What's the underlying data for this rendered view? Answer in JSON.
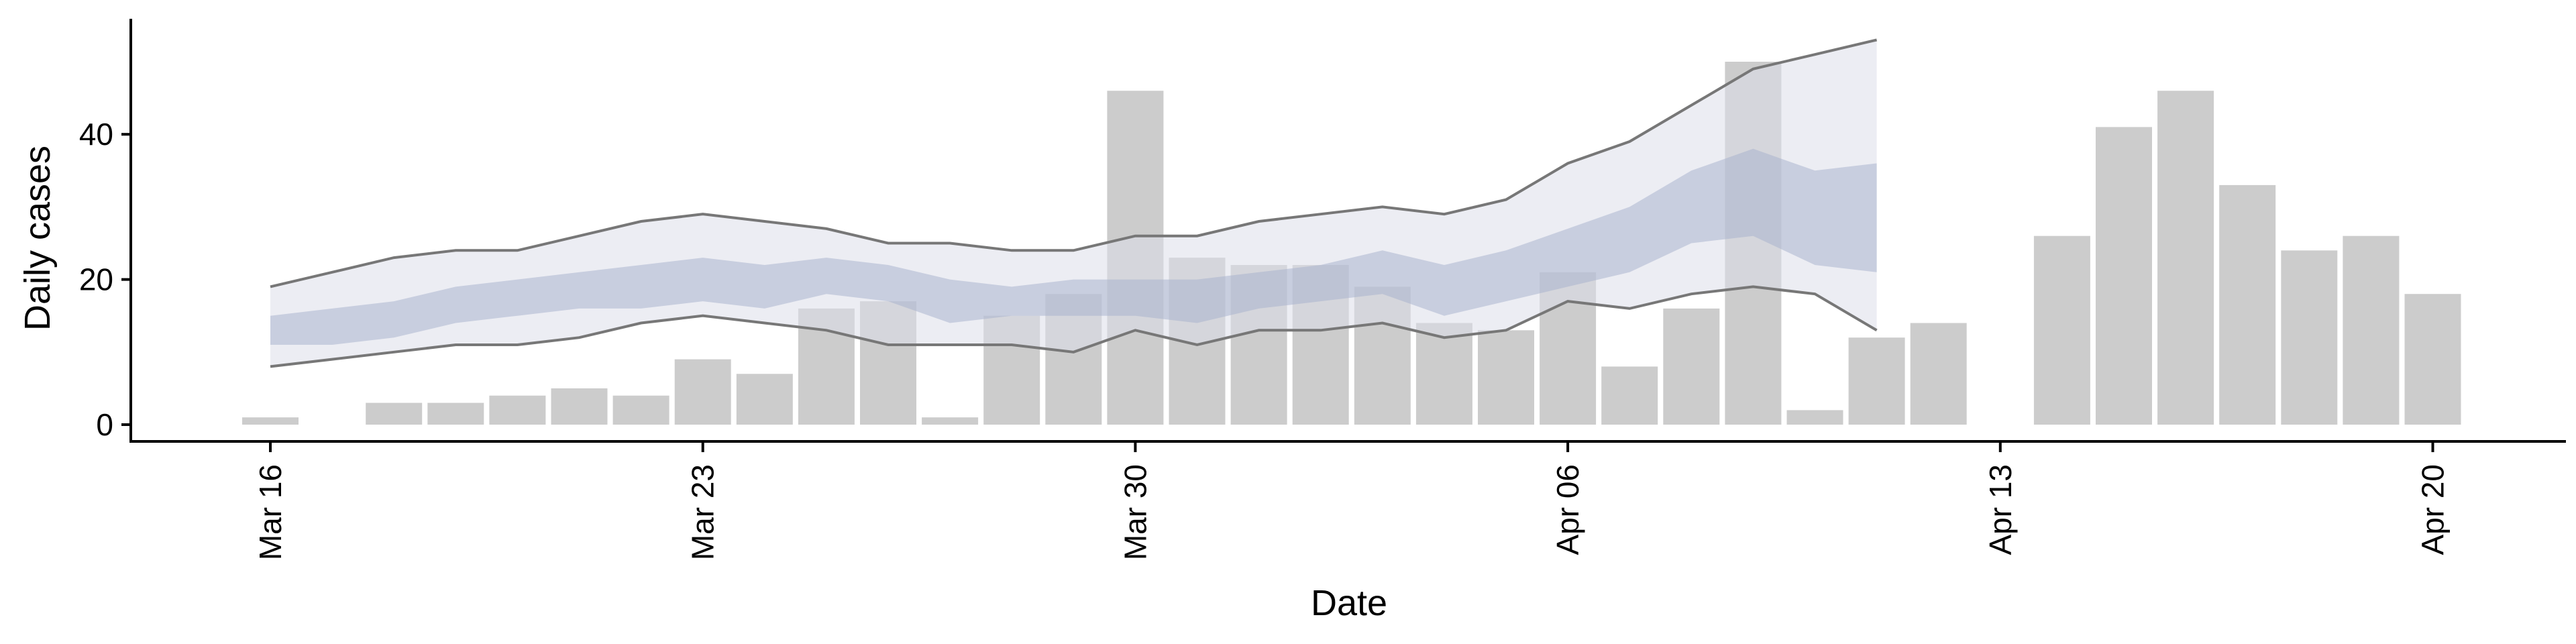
{
  "chart_data": {
    "type": "bar",
    "xlabel": "Date",
    "ylabel": "Daily cases",
    "ylim": [
      -2.5,
      56
    ],
    "yticks": [
      0,
      20,
      40
    ],
    "x_start": "2020-03-16",
    "x_end": "2020-04-20",
    "xtick_labels": [
      "Mar 16",
      "Mar 23",
      "Mar 30",
      "Apr 06",
      "Apr 13",
      "Apr 20"
    ],
    "xtick_dates": [
      "2020-03-16",
      "2020-03-23",
      "2020-03-30",
      "2020-04-06",
      "2020-04-13",
      "2020-04-20"
    ],
    "grid": false,
    "legend": "none",
    "bars": {
      "dates": [
        "2020-03-16",
        "2020-03-18",
        "2020-03-19",
        "2020-03-20",
        "2020-03-21",
        "2020-03-22",
        "2020-03-23",
        "2020-03-24",
        "2020-03-25",
        "2020-03-26",
        "2020-03-27",
        "2020-03-28",
        "2020-03-29",
        "2020-03-30",
        "2020-03-31",
        "2020-04-01",
        "2020-04-02",
        "2020-04-03",
        "2020-04-04",
        "2020-04-05",
        "2020-04-06",
        "2020-04-07",
        "2020-04-08",
        "2020-04-09",
        "2020-04-10",
        "2020-04-11",
        "2020-04-12",
        "2020-04-14",
        "2020-04-15",
        "2020-04-16",
        "2020-04-17",
        "2020-04-18",
        "2020-04-19",
        "2020-04-20"
      ],
      "values": [
        1,
        3,
        3,
        4,
        5,
        4,
        9,
        7,
        16,
        17,
        1,
        15,
        18,
        46,
        23,
        22,
        22,
        19,
        14,
        13,
        21,
        8,
        16,
        50,
        2,
        12,
        14,
        26,
        41,
        46,
        33,
        24,
        26,
        18
      ]
    },
    "nowcast": {
      "dates": [
        "2020-03-16",
        "2020-03-17",
        "2020-03-18",
        "2020-03-19",
        "2020-03-20",
        "2020-03-21",
        "2020-03-22",
        "2020-03-23",
        "2020-03-24",
        "2020-03-25",
        "2020-03-26",
        "2020-03-27",
        "2020-03-28",
        "2020-03-29",
        "2020-03-30",
        "2020-03-31",
        "2020-04-01",
        "2020-04-02",
        "2020-04-03",
        "2020-04-04",
        "2020-04-05",
        "2020-04-06",
        "2020-04-07",
        "2020-04-08",
        "2020-04-09",
        "2020-04-10",
        "2020-04-11"
      ],
      "upper90": [
        19,
        21,
        23,
        24,
        24,
        26,
        28,
        29,
        28,
        27,
        25,
        25,
        24,
        24,
        26,
        26,
        28,
        29,
        30,
        29,
        31,
        36,
        39,
        44,
        49,
        51,
        53
      ],
      "upper50": [
        15,
        16,
        17,
        19,
        20,
        21,
        22,
        23,
        22,
        23,
        22,
        20,
        19,
        20,
        20,
        20,
        21,
        22,
        24,
        22,
        24,
        27,
        30,
        35,
        38,
        35,
        36
      ],
      "lower50": [
        11,
        11,
        12,
        14,
        15,
        16,
        16,
        17,
        16,
        18,
        17,
        14,
        15,
        15,
        15,
        14,
        16,
        17,
        18,
        15,
        17,
        19,
        21,
        25,
        26,
        22,
        21
      ],
      "lower90": [
        8,
        9,
        10,
        11,
        11,
        12,
        14,
        15,
        14,
        13,
        11,
        11,
        11,
        10,
        13,
        11,
        13,
        13,
        14,
        12,
        13,
        17,
        16,
        18,
        19,
        18,
        13
      ]
    },
    "colors": {
      "bar": "#cccccc",
      "band90": "#dcdeea",
      "band50": "#a6b0cc",
      "line": "#777777",
      "axis": "#000000"
    }
  }
}
